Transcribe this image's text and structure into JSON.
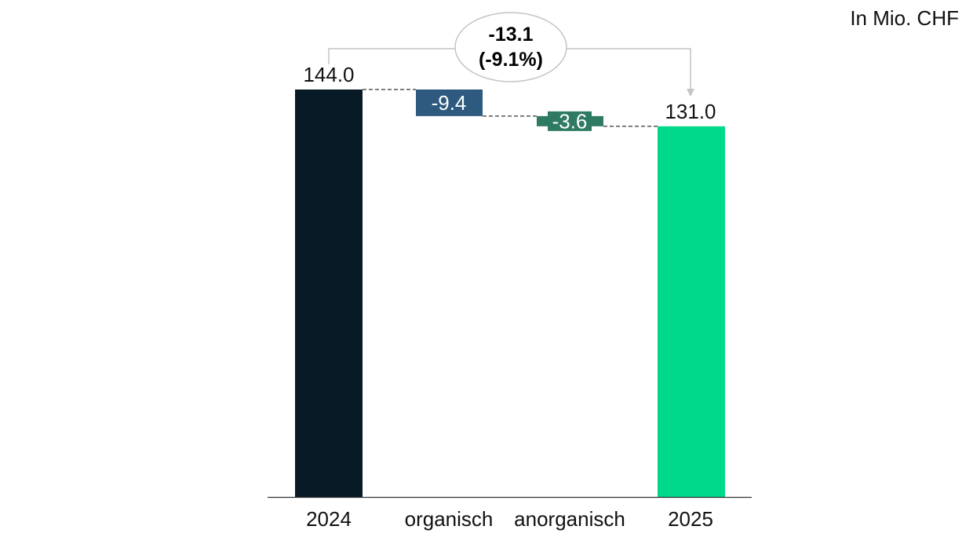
{
  "unit_label": "In Mio. CHF",
  "delta_callout": {
    "value": "-13.1",
    "percent": "(-9.1%)"
  },
  "chart_data": {
    "type": "bar",
    "variant": "waterfall",
    "title": "",
    "xlabel": "",
    "ylabel": "",
    "ylim": [
      0,
      144
    ],
    "categories": [
      "2024",
      "organisch",
      "anorganisch",
      "2025"
    ],
    "values": [
      144.0,
      -9.4,
      -3.6,
      131.0
    ],
    "data_labels": [
      "144.0",
      "-9.4",
      "-3.6",
      "131.0"
    ],
    "kinds": [
      "total",
      "delta",
      "delta",
      "total"
    ],
    "colors": [
      "#071a26",
      "#2d5a7e",
      "#2f7a63",
      "#00d88a"
    ],
    "grid": false,
    "legend": "none"
  }
}
